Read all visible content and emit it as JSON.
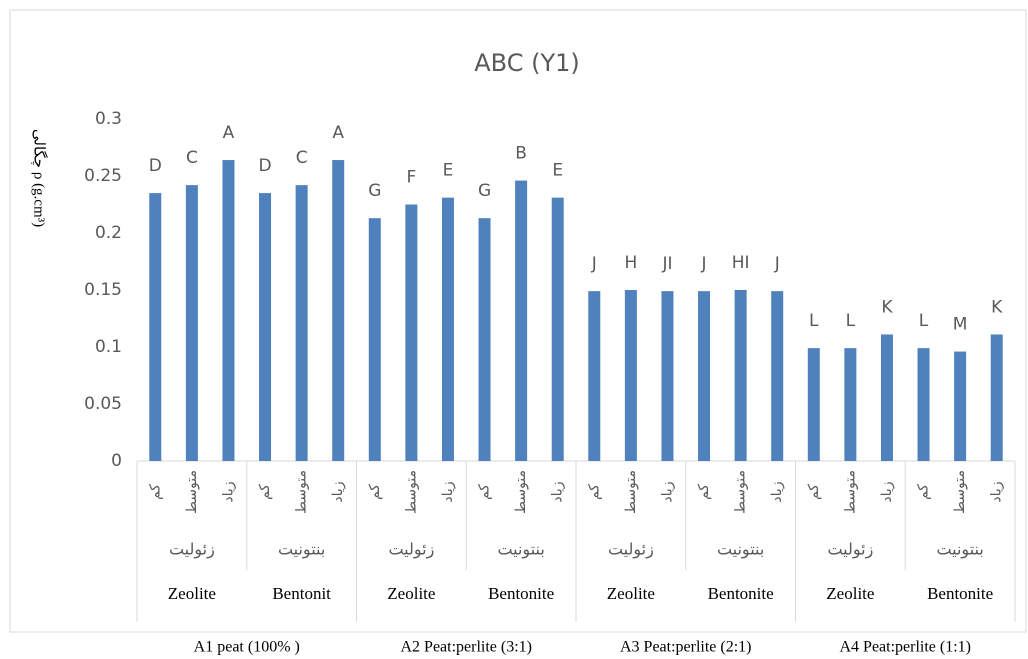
{
  "chart_data": {
    "type": "bar",
    "title": "ABC (Y1)",
    "y_label": "چگالی ρ (g.cm³)",
    "categories": [
      "کم",
      "متوسط",
      "زیاد",
      "کم",
      "متوسط",
      "زیاد",
      "کم",
      "متوسط",
      "زیاد",
      "کم",
      "متوسط",
      "زیاد",
      "کم",
      "متوسط",
      "زیاد",
      "کم",
      "متوسط",
      "زیاد",
      "کم",
      "متوسط",
      "زیاد",
      "کم",
      "متوسط",
      "زیاد"
    ],
    "groups": [
      "زئولیت",
      "بنتونیت",
      "زئولیت",
      "بنتونیت",
      "زئولیت",
      "بنتونیت",
      "زئولیت",
      "بنتونیت"
    ],
    "materials": [
      "Zeolite",
      "Bentonit",
      "Zeolite",
      "Bentonite",
      "Zeolite",
      "Bentonite",
      "Zeolite",
      "Bentonite"
    ],
    "treatments": [
      "A1 peat  (100% )",
      "A2 Peat:perlite (3:1)",
      "A3 Peat:perlite  (2:1)",
      "A4 Peat:perlite (1:1)"
    ],
    "values": [
      0.235,
      0.242,
      0.264,
      0.235,
      0.242,
      0.264,
      0.213,
      0.225,
      0.231,
      0.213,
      0.246,
      0.231,
      0.149,
      0.15,
      0.149,
      0.149,
      0.15,
      0.149,
      0.099,
      0.099,
      0.111,
      0.099,
      0.096,
      0.111
    ],
    "annotations": [
      "D",
      "C",
      "A",
      "D",
      "C",
      "A",
      "G",
      "F",
      "E",
      "G",
      "B",
      "E",
      "J",
      "H",
      "JI",
      "J",
      "HI",
      "J",
      "L",
      "L",
      "K",
      "L",
      "M",
      "K"
    ],
    "color": "#4f81bd",
    "ylim": [
      0,
      0.3
    ],
    "yticks": [
      0,
      0.05,
      0.1,
      0.15,
      0.2,
      0.25,
      0.3
    ],
    "grid": false
  }
}
